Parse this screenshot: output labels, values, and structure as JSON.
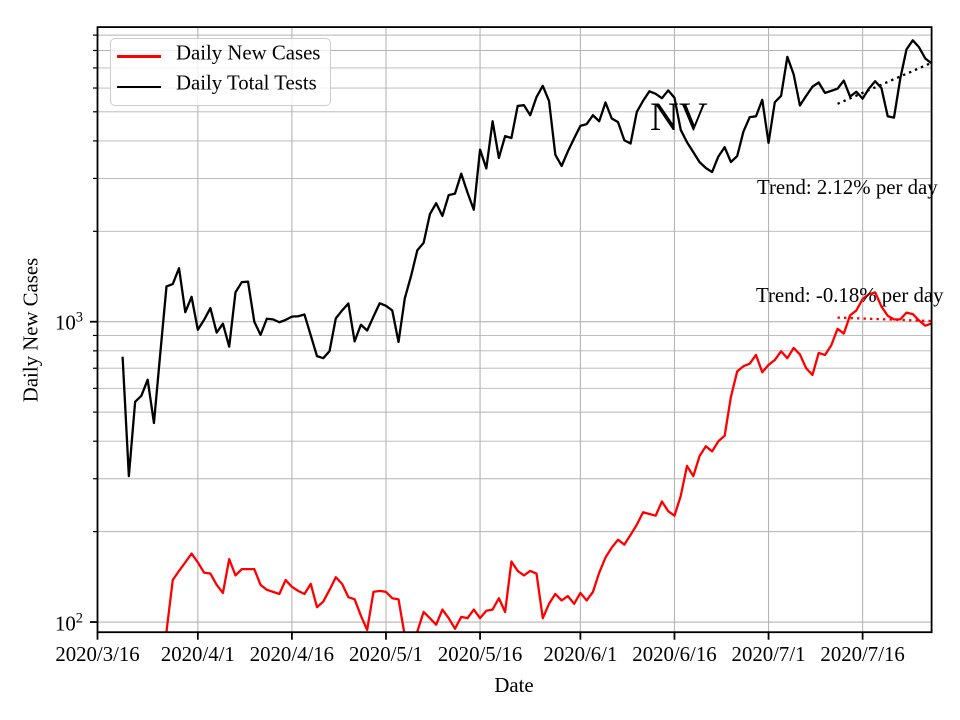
{
  "chart_data": {
    "type": "line",
    "state_label": "NV",
    "xlabel": "Date",
    "ylabel": "Daily New Cases",
    "yscale": "log",
    "ylim": [
      92.5,
      9572
    ],
    "x_range_days": [
      0,
      133
    ],
    "x_tick_days": [
      0,
      16,
      31,
      46,
      61,
      77,
      92,
      107,
      122
    ],
    "x_tick_labels": [
      "2020/3/16",
      "2020/4/1",
      "2020/4/16",
      "2020/5/1",
      "2020/5/16",
      "2020/6/1",
      "2020/6/16",
      "2020/7/1",
      "2020/7/16"
    ],
    "y_major_ticks": [
      100,
      1000
    ],
    "y_tick_labels": [
      {
        "base": "10",
        "exp": "2"
      },
      {
        "base": "10",
        "exp": "3"
      }
    ],
    "grid_color": "#b5b5b5",
    "series": [
      {
        "name": "Daily New Cases",
        "color": "#ff0000",
        "values": [
          null,
          null,
          null,
          null,
          null,
          null,
          null,
          null,
          null,
          null,
          75,
          93,
          138,
          148,
          158,
          169,
          158,
          146,
          145,
          133,
          125,
          162,
          143,
          150,
          150,
          150,
          133,
          128,
          126,
          124,
          138,
          131,
          127,
          124,
          134,
          112,
          117,
          128,
          141,
          134,
          121,
          119,
          105,
          94,
          126,
          127,
          126,
          120,
          119,
          90,
          86,
          93,
          108,
          103,
          98,
          110,
          103,
          95,
          104,
          103,
          110,
          103,
          109,
          110,
          120,
          108,
          159,
          148,
          143,
          148,
          145,
          103,
          115,
          124,
          118,
          122,
          115,
          125,
          118,
          126,
          146,
          164,
          177,
          188,
          181,
          195,
          211,
          232,
          229,
          226,
          252,
          234,
          226,
          263,
          331,
          306,
          357,
          385,
          370,
          400,
          417,
          562,
          683,
          711,
          725,
          775,
          679,
          718,
          746,
          797,
          756,
          818,
          778,
          700,
          665,
          787,
          775,
          834,
          947,
          913,
          1050,
          1090,
          1190,
          1235,
          1252,
          1124,
          1047,
          1018,
          1018,
          1072,
          1060,
          1009,
          970,
          987
        ]
      },
      {
        "name": "Daily Total Tests",
        "color": "#000000",
        "values": [
          null,
          null,
          null,
          null,
          765,
          306,
          541,
          567,
          641,
          460,
          780,
          1310,
          1335,
          1508,
          1076,
          1210,
          940,
          1015,
          1110,
          920,
          985,
          826,
          1252,
          1354,
          1360,
          1000,
          904,
          1023,
          1018,
          996,
          1014,
          1040,
          1043,
          1057,
          901,
          768,
          756,
          798,
          1026,
          1090,
          1150,
          860,
          977,
          935,
          1040,
          1152,
          1130,
          1090,
          856,
          1197,
          1420,
          1730,
          1830,
          2280,
          2480,
          2250,
          2640,
          2670,
          3110,
          2690,
          2360,
          3740,
          3240,
          4650,
          3510,
          4150,
          4090,
          5230,
          5260,
          4870,
          5600,
          6100,
          5430,
          3600,
          3300,
          3690,
          4080,
          4490,
          4550,
          4870,
          4650,
          5370,
          4750,
          4620,
          4020,
          3920,
          5000,
          5440,
          5850,
          5740,
          5550,
          5890,
          5570,
          4350,
          3960,
          3670,
          3400,
          3250,
          3150,
          3550,
          3810,
          3400,
          3560,
          4300,
          4800,
          4830,
          5480,
          3940,
          5380,
          5650,
          7620,
          6670,
          5250,
          5650,
          6060,
          6260,
          5780,
          5870,
          5970,
          6350,
          5620,
          5830,
          5530,
          5970,
          6320,
          6000,
          4830,
          4780,
          6440,
          8070,
          8650,
          8200,
          7520,
          7250
        ]
      }
    ],
    "trend_lines": [
      {
        "name": "tests-trend",
        "label": "Trend: 2.12% per day",
        "color": "#000000",
        "day_start": 118,
        "value_start": 5315,
        "day_end": 133,
        "value_end": 7280
      },
      {
        "name": "cases-trend",
        "label": "Trend: -0.18% per day",
        "color": "#ff0000",
        "day_start": 118,
        "value_start": 1032,
        "day_end": 133,
        "value_end": 1005
      }
    ],
    "legend": {
      "items": [
        {
          "label": "Daily New Cases",
          "color": "#ff0000"
        },
        {
          "label": "Daily Total Tests",
          "color": "#000000"
        }
      ]
    }
  }
}
